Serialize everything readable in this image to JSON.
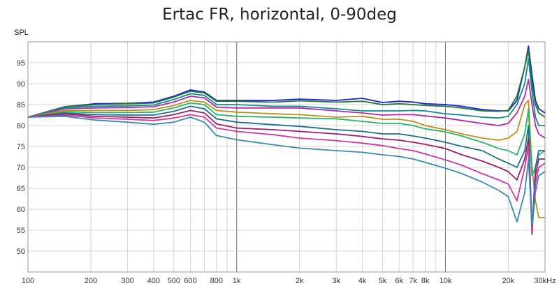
{
  "chart_data": {
    "type": "line",
    "title": "Ertac FR, horizontal, 0-90deg",
    "ylabel": "SPL",
    "xlabel": "",
    "xscale": "log",
    "xlim": [
      100,
      30000
    ],
    "ylim": [
      45,
      100
    ],
    "grid": true,
    "x_ticks": [
      100,
      200,
      300,
      400,
      500,
      600,
      800,
      1000,
      2000,
      3000,
      4000,
      5000,
      6000,
      7000,
      8000,
      10000,
      20000,
      30000
    ],
    "x_tick_labels": [
      "100",
      "200",
      "300",
      "400",
      "500",
      "600",
      "800",
      "1k",
      "2k",
      "3k",
      "4k",
      "5k",
      "6k",
      "7k",
      "8k",
      "10k",
      "20k",
      "30kHz"
    ],
    "y_ticks": [
      50,
      55,
      60,
      65,
      70,
      75,
      80,
      85,
      90,
      95
    ],
    "y_tick_labels": [
      "50",
      "55",
      "60",
      "65",
      "70",
      "75",
      "80",
      "85",
      "90",
      "95"
    ],
    "x": [
      100,
      150,
      210,
      300,
      400,
      500,
      600,
      700,
      800,
      1000,
      1500,
      2000,
      3000,
      4000,
      5000,
      6000,
      7000,
      8000,
      10000,
      12000,
      15000,
      18000,
      20000,
      22000,
      24000,
      25000,
      26000,
      27000,
      28000,
      30000
    ],
    "series": [
      {
        "color": "#1a22cc",
        "values": [
          82.0,
          84.5,
          85.2,
          85.3,
          85.6,
          87.0,
          88.5,
          88.0,
          86.0,
          86.0,
          86.0,
          86.3,
          86.0,
          86.5,
          85.5,
          85.8,
          85.6,
          85.2,
          85.0,
          84.6,
          83.8,
          83.5,
          83.5,
          86.0,
          94.0,
          99.0,
          92.0,
          86.0,
          84.0,
          83.0
        ]
      },
      {
        "color": "#1e7a36",
        "values": [
          82.0,
          84.5,
          85.0,
          85.2,
          85.4,
          86.8,
          88.2,
          87.8,
          85.8,
          85.8,
          85.6,
          85.9,
          85.6,
          85.8,
          85.0,
          85.2,
          85.0,
          84.8,
          84.6,
          84.2,
          83.5,
          83.4,
          83.6,
          87.0,
          94.0,
          98.0,
          90.0,
          85.0,
          83.0,
          82.0
        ]
      },
      {
        "color": "#138a8c",
        "values": [
          82.0,
          84.3,
          84.6,
          84.7,
          84.9,
          86.2,
          87.6,
          87.2,
          85.0,
          85.0,
          84.6,
          84.6,
          84.0,
          83.5,
          83.5,
          83.5,
          83.6,
          83.5,
          82.8,
          82.5,
          82.0,
          81.8,
          82.2,
          85.0,
          90.0,
          96.0,
          88.0,
          82.0,
          80.0,
          80.0
        ]
      },
      {
        "color": "#b02aa8",
        "values": [
          82.0,
          84.0,
          84.2,
          84.3,
          84.5,
          85.6,
          87.0,
          86.6,
          84.4,
          84.2,
          84.2,
          84.2,
          83.5,
          83.0,
          82.5,
          82.6,
          82.6,
          82.3,
          81.8,
          81.2,
          80.5,
          80.0,
          80.5,
          83.0,
          87.0,
          91.0,
          85.0,
          80.0,
          78.0,
          77.0
        ]
      },
      {
        "color": "#b8901c",
        "values": [
          82.0,
          83.6,
          83.6,
          83.6,
          83.8,
          84.8,
          86.0,
          85.6,
          83.6,
          83.2,
          82.8,
          82.6,
          82.0,
          82.2,
          81.5,
          81.5,
          81.0,
          80.0,
          79.0,
          78.0,
          77.0,
          76.5,
          77.0,
          78.5,
          85.0,
          86.0,
          70.0,
          62.0,
          58.0,
          58.0
        ]
      },
      {
        "color": "#2bb36a",
        "values": [
          82.0,
          83.3,
          83.1,
          83.1,
          83.2,
          84.2,
          85.4,
          85.0,
          82.6,
          82.2,
          82.0,
          81.8,
          81.6,
          81.0,
          80.5,
          80.5,
          80.0,
          79.2,
          78.5,
          77.5,
          76.0,
          74.5,
          74.0,
          73.0,
          78.0,
          84.0,
          68.0,
          70.0,
          73.0,
          74.0
        ]
      },
      {
        "color": "#1e6e8c",
        "values": [
          82.0,
          83.0,
          82.6,
          82.5,
          82.5,
          83.4,
          84.6,
          84.0,
          81.6,
          80.8,
          80.2,
          79.8,
          79.0,
          78.6,
          78.0,
          78.0,
          77.5,
          77.0,
          76.0,
          75.0,
          74.0,
          72.0,
          71.0,
          70.0,
          74.0,
          80.0,
          55.0,
          70.0,
          74.0,
          74.0
        ]
      },
      {
        "color": "#9a2070",
        "values": [
          82.0,
          82.8,
          82.2,
          82.0,
          81.8,
          82.6,
          83.6,
          83.0,
          80.4,
          79.4,
          79.0,
          78.6,
          78.0,
          77.4,
          76.8,
          76.5,
          76.0,
          75.5,
          74.5,
          73.0,
          71.5,
          70.0,
          69.0,
          67.0,
          72.0,
          77.0,
          54.0,
          68.0,
          72.0,
          72.0
        ]
      },
      {
        "color": "#c83aa0",
        "values": [
          82.0,
          82.5,
          81.8,
          81.5,
          81.2,
          81.8,
          82.6,
          82.0,
          79.4,
          78.6,
          77.8,
          77.0,
          76.4,
          75.8,
          75.2,
          74.5,
          74.0,
          73.2,
          71.8,
          70.5,
          68.5,
          67.0,
          66.0,
          62.0,
          70.0,
          75.0,
          55.0,
          66.0,
          70.0,
          71.0
        ]
      },
      {
        "color": "#3a8ab0",
        "values": [
          82.0,
          82.2,
          81.3,
          80.8,
          80.3,
          80.8,
          82.0,
          80.8,
          77.6,
          76.6,
          75.4,
          74.6,
          74.0,
          73.6,
          73.0,
          72.6,
          72.0,
          71.2,
          69.8,
          68.5,
          66.5,
          64.5,
          63.0,
          57.0,
          64.0,
          72.0,
          56.0,
          64.0,
          68.0,
          69.0
        ]
      }
    ]
  }
}
